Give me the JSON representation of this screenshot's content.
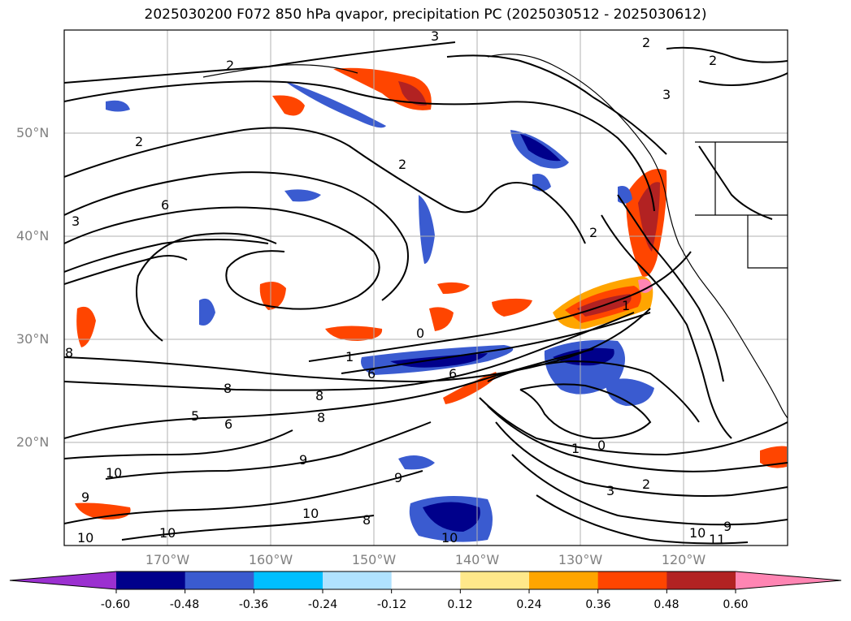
{
  "title": "2025030200 F072 850 hPa qvapor, precipitation PC (2025030512 - 2025030612)",
  "map": {
    "lat_labels": [
      "50°N",
      "40°N",
      "30°N",
      "20°N"
    ],
    "lon_labels": [
      "170°W",
      "160°W",
      "150°W",
      "140°W",
      "130°W",
      "120°W"
    ],
    "contour_labels": [
      "3",
      "2",
      "2",
      "2",
      "3",
      "6",
      "2",
      "2",
      "2",
      "3",
      "0",
      "1",
      "6",
      "6",
      "8",
      "8",
      "5",
      "6",
      "8",
      "10",
      "9",
      "10",
      "10",
      "9",
      "10",
      "1",
      "0",
      "2",
      "3",
      "1",
      "10",
      "11",
      "9",
      "10",
      "8",
      "9",
      "8"
    ]
  },
  "colorbar": {
    "ticks": [
      "-0.60",
      "-0.48",
      "-0.36",
      "-0.24",
      "-0.12",
      "0.12",
      "0.24",
      "0.36",
      "0.48",
      "0.60"
    ],
    "colors": [
      "#9b30d0",
      "#00008b",
      "#3a5bd0",
      "#00bfff",
      "#b0e2ff",
      "#ffffff",
      "#ffe88a",
      "#ffa500",
      "#ff4500",
      "#b22222",
      "#ff85b3"
    ]
  }
}
